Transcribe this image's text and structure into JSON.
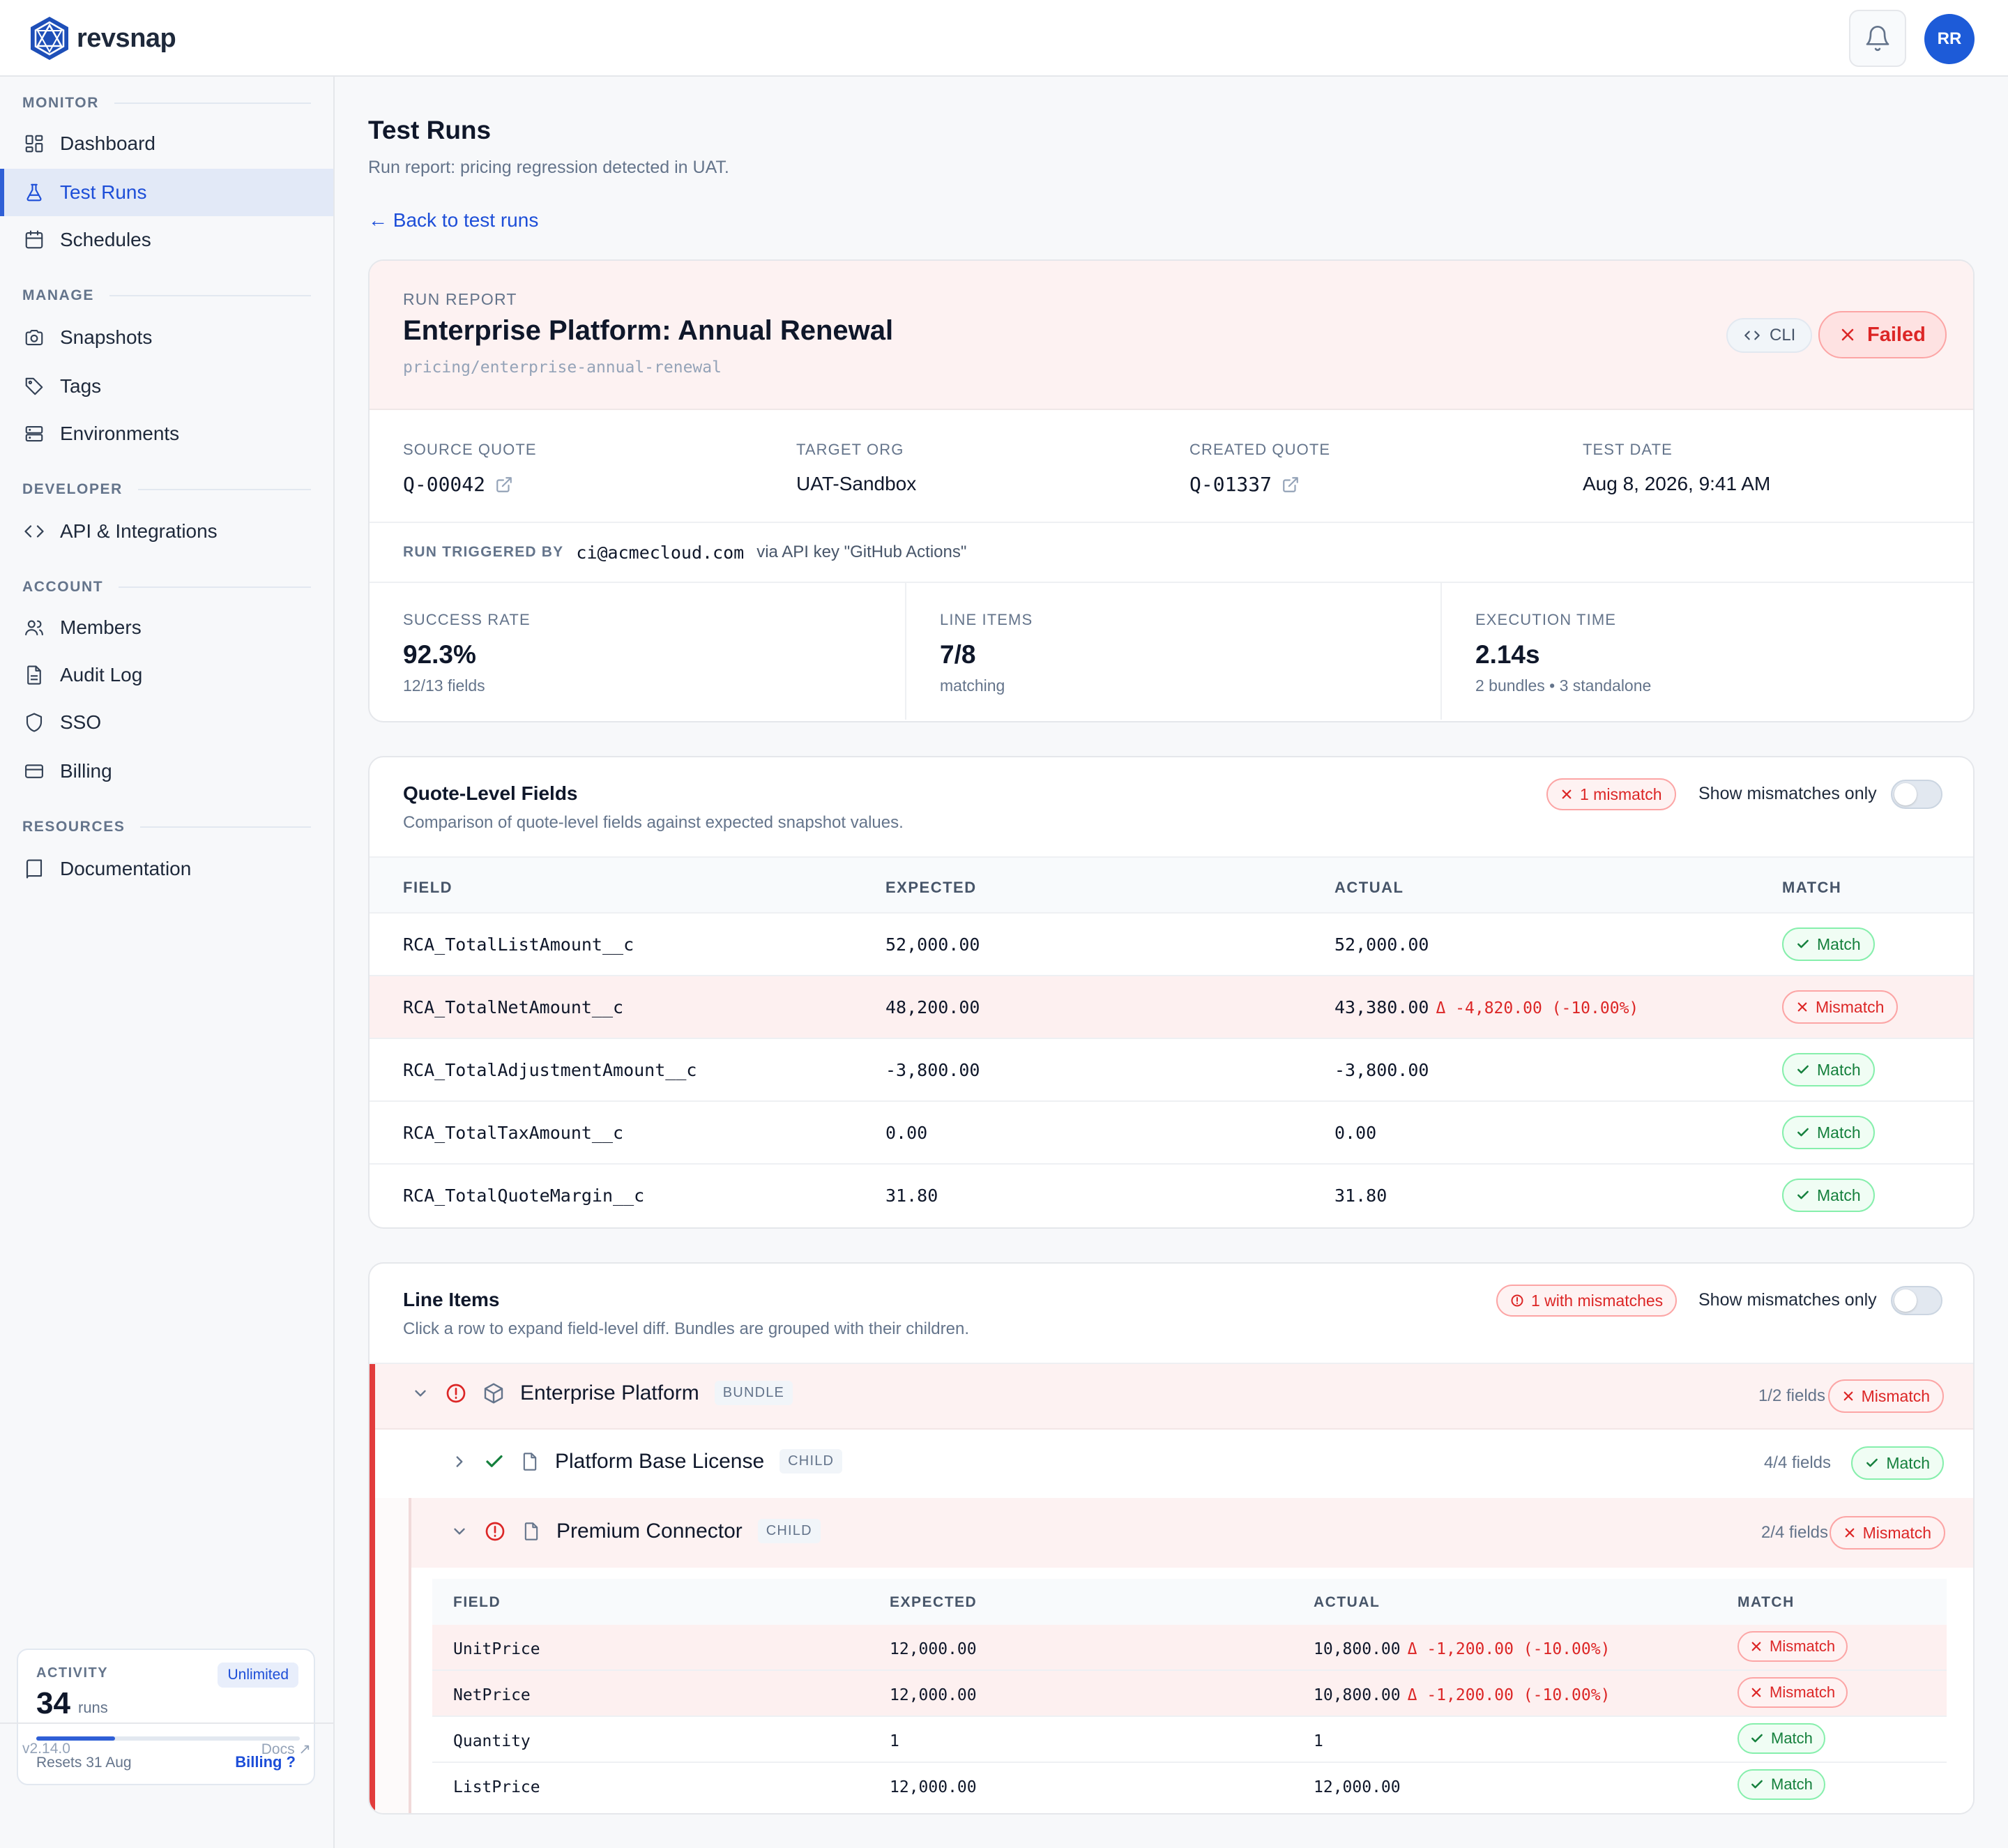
{
  "brand": {
    "name": "revsnap"
  },
  "header": {
    "avatar_initials": "RR"
  },
  "sidebar": {
    "sections": [
      {
        "title": "MONITOR",
        "items": [
          {
            "label": "Dashboard",
            "icon": "dashboard-icon"
          },
          {
            "label": "Test Runs",
            "icon": "flask-icon",
            "active": true
          },
          {
            "label": "Schedules",
            "icon": "calendar-icon"
          }
        ]
      },
      {
        "title": "MANAGE",
        "items": [
          {
            "label": "Snapshots",
            "icon": "camera-icon"
          },
          {
            "label": "Tags",
            "icon": "tag-icon"
          },
          {
            "label": "Environments",
            "icon": "server-icon"
          }
        ]
      },
      {
        "title": "DEVELOPER",
        "items": [
          {
            "label": "API & Integrations",
            "icon": "code-icon"
          }
        ]
      },
      {
        "title": "ACCOUNT",
        "items": [
          {
            "label": "Members",
            "icon": "users-icon"
          },
          {
            "label": "Audit Log",
            "icon": "document-icon"
          },
          {
            "label": "SSO",
            "icon": "shield-icon"
          },
          {
            "label": "Billing",
            "icon": "credit-card-icon"
          }
        ]
      },
      {
        "title": "RESOURCES",
        "items": [
          {
            "label": "Documentation",
            "icon": "book-icon"
          }
        ]
      }
    ],
    "usage": {
      "label": "ACTIVITY",
      "badge": "Unlimited",
      "count": "34",
      "unit": "runs",
      "progress_fraction": 0.3,
      "resets": "Resets 31 Aug",
      "link": "Billing ?"
    },
    "version": "v2.14.0",
    "docs_link": "Docs ↗"
  },
  "page": {
    "title": "Test Runs",
    "subtitle": "Run report: pricing regression detected in UAT.",
    "back_link": "← Back to test runs"
  },
  "report": {
    "label": "RUN REPORT",
    "title": "Enterprise Platform: Annual Renewal",
    "path": "pricing/enterprise-annual-renewal",
    "source_chip": "CLI",
    "status": "Failed",
    "meta": [
      {
        "label": "SOURCE QUOTE",
        "value": "Q-00042",
        "mono": true,
        "external": true
      },
      {
        "label": "TARGET ORG",
        "value": "UAT-Sandbox"
      },
      {
        "label": "CREATED QUOTE",
        "value": "Q-01337",
        "mono": true,
        "external": true
      },
      {
        "label": "TEST DATE",
        "value": "Aug 8, 2026, 9:41 AM"
      }
    ],
    "trigger": {
      "label": "RUN TRIGGERED BY",
      "email": "ci@acmecloud.com",
      "via": "via API key \"GitHub Actions\""
    },
    "stats": [
      {
        "label": "SUCCESS RATE",
        "value": "92.3%",
        "sub": "12/13 fields"
      },
      {
        "label": "LINE ITEMS",
        "value": "7/8",
        "sub": "matching"
      },
      {
        "label": "EXECUTION TIME",
        "value": "2.14s",
        "sub": "2 bundles • 3 standalone"
      }
    ]
  },
  "quote_fields": {
    "title": "Quote-Level Fields",
    "subtitle": "Comparison of quote-level fields against expected snapshot values.",
    "mismatch_pill": "1 mismatch",
    "toggle_label": "Show mismatches only",
    "columns": [
      "FIELD",
      "EXPECTED",
      "ACTUAL",
      "MATCH"
    ],
    "rows": [
      {
        "field": "RCA_TotalListAmount__c",
        "expected": "52,000.00",
        "actual": "52,000.00",
        "delta": "",
        "match": "Match",
        "ok": true
      },
      {
        "field": "RCA_TotalNetAmount__c",
        "expected": "48,200.00",
        "actual": "43,380.00",
        "delta": "Δ -4,820.00 (-10.00%)",
        "match": "Mismatch",
        "ok": false
      },
      {
        "field": "RCA_TotalAdjustmentAmount__c",
        "expected": "-3,800.00",
        "actual": "-3,800.00",
        "delta": "",
        "match": "Match",
        "ok": true
      },
      {
        "field": "RCA_TotalTaxAmount__c",
        "expected": "0.00",
        "actual": "0.00",
        "delta": "",
        "match": "Match",
        "ok": true
      },
      {
        "field": "RCA_TotalQuoteMargin__c",
        "expected": "31.80",
        "actual": "31.80",
        "delta": "",
        "match": "Match",
        "ok": true
      }
    ]
  },
  "line_items": {
    "title": "Line Items",
    "subtitle": "Click a row to expand field-level diff. Bundles are grouped with their children.",
    "mismatch_pill": "1 with mismatches",
    "toggle_label": "Show mismatches only",
    "bundle": {
      "name": "Enterprise Platform",
      "tag": "BUNDLE",
      "fields": "1/2 fields",
      "status": "Mismatch"
    },
    "children": [
      {
        "name": "Platform Base License",
        "tag": "CHILD",
        "fields": "4/4 fields",
        "status": "Match"
      },
      {
        "name": "Premium Connector",
        "tag": "CHILD",
        "fields": "2/4 fields",
        "status": "Mismatch"
      }
    ],
    "detail_columns": [
      "FIELD",
      "EXPECTED",
      "ACTUAL",
      "MATCH"
    ],
    "detail_rows": [
      {
        "field": "UnitPrice",
        "expected": "12,000.00",
        "actual": "10,800.00",
        "delta": "Δ -1,200.00 (-10.00%)",
        "match": "Mismatch",
        "ok": false
      },
      {
        "field": "NetPrice",
        "expected": "12,000.00",
        "actual": "10,800.00",
        "delta": "Δ -1,200.00 (-10.00%)",
        "match": "Mismatch",
        "ok": false
      },
      {
        "field": "Quantity",
        "expected": "1",
        "actual": "1",
        "delta": "",
        "match": "Match",
        "ok": true
      },
      {
        "field": "ListPrice",
        "expected": "12,000.00",
        "actual": "12,000.00",
        "delta": "",
        "match": "Match",
        "ok": true
      }
    ]
  },
  "colors": {
    "accent": "#1d4ed8",
    "danger": "#dc2626",
    "success": "#15803d"
  }
}
